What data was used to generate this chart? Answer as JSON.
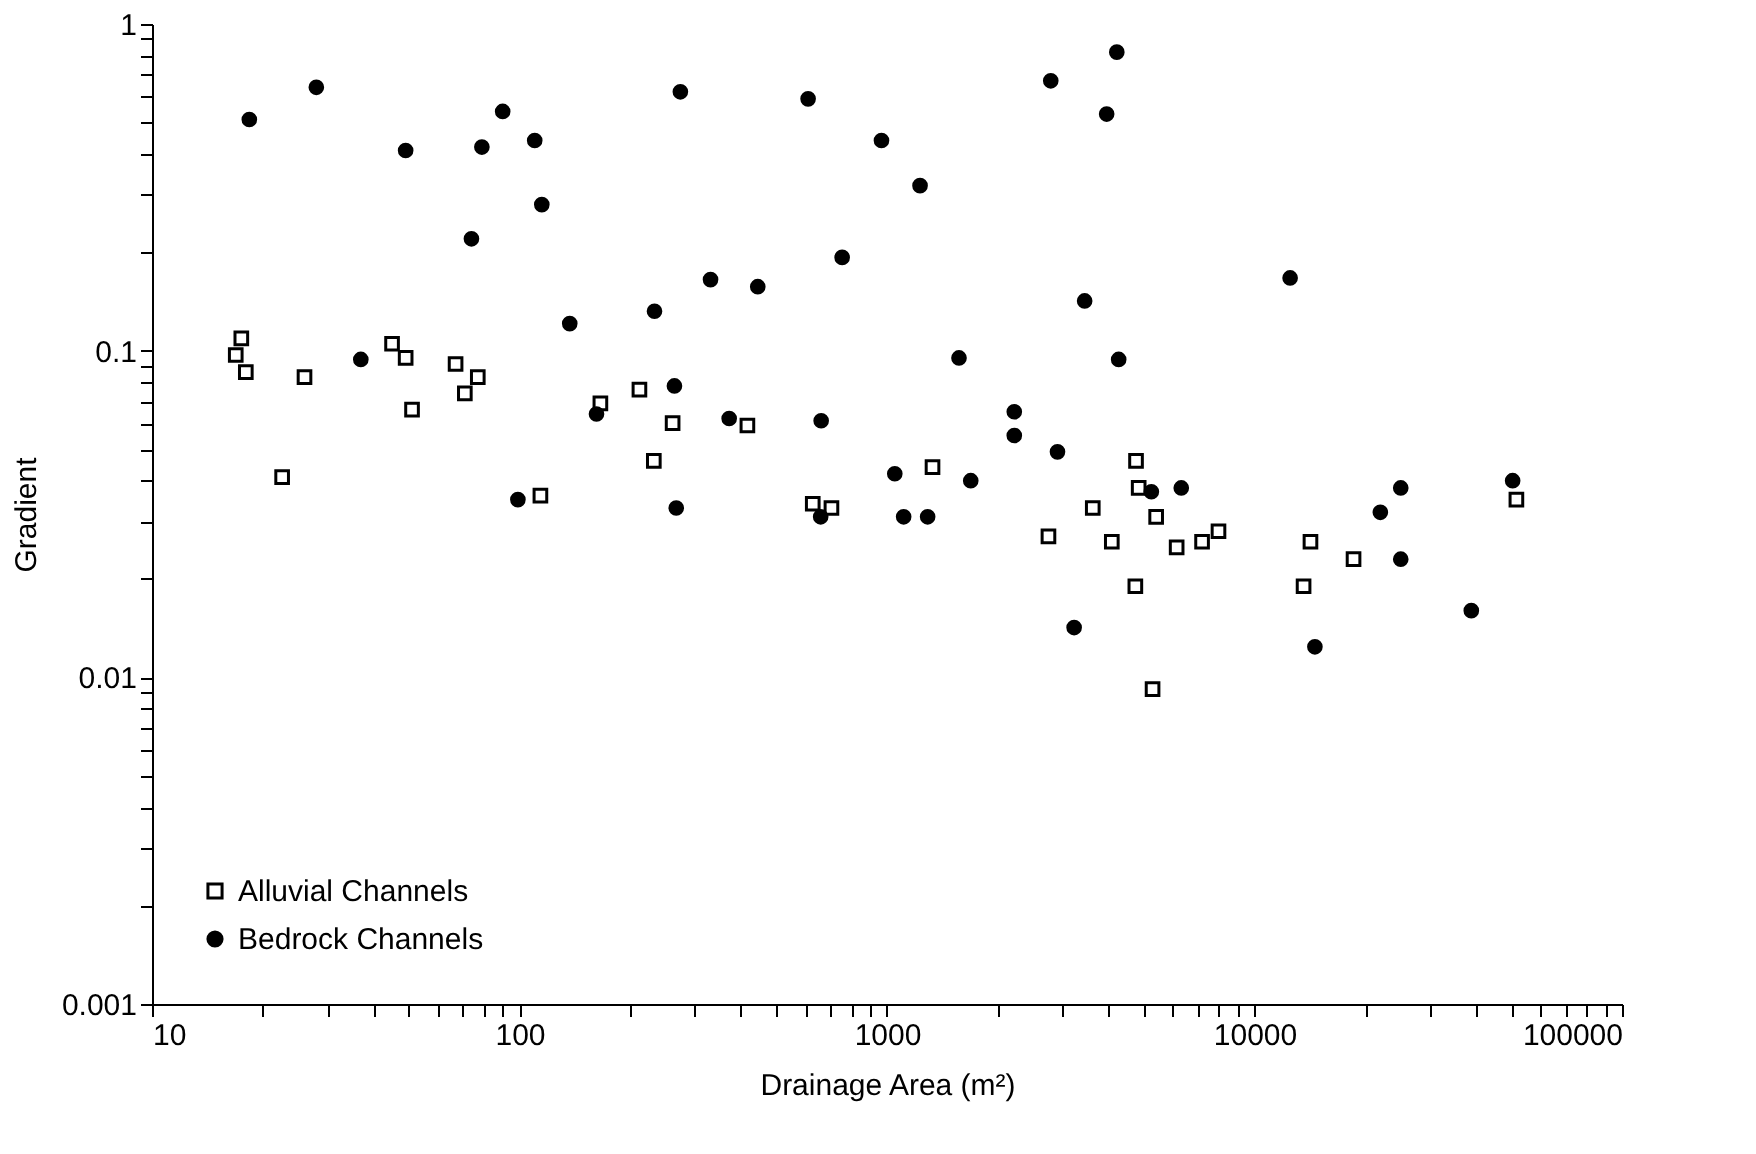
{
  "chart_data": {
    "type": "scatter",
    "xlabel": "Drainage Area (m²)",
    "ylabel": "Gradient",
    "log": "xy",
    "grid": false,
    "legend": "bottom left",
    "xlim": [
      10,
      100000
    ],
    "ylim": [
      0.001,
      1
    ],
    "xticks": [
      10,
      {
        "value": 20,
        "label": null
      },
      {
        "value": 30,
        "label": null
      },
      {
        "value": 40,
        "label": null
      },
      {
        "value": 50,
        "label": null
      },
      {
        "value": 60,
        "label": null
      },
      {
        "value": 70,
        "label": null
      },
      {
        "value": 80,
        "label": null
      },
      {
        "value": 90,
        "label": null
      },
      100,
      {
        "value": 200,
        "label": null
      },
      {
        "value": 300,
        "label": null
      },
      {
        "value": 400,
        "label": null
      },
      {
        "value": 500,
        "label": null
      },
      {
        "value": 600,
        "label": null
      },
      {
        "value": 700,
        "label": null
      },
      {
        "value": 800,
        "label": null
      },
      {
        "value": 900,
        "label": null
      },
      1000,
      {
        "value": 2000,
        "label": null
      },
      {
        "value": 3000,
        "label": null
      },
      {
        "value": 4000,
        "label": null
      },
      {
        "value": 5000,
        "label": null
      },
      {
        "value": 6000,
        "label": null
      },
      {
        "value": 7000,
        "label": null
      },
      {
        "value": 8000,
        "label": null
      },
      {
        "value": 9000,
        "label": null
      },
      10000,
      {
        "value": 20000,
        "label": null
      },
      {
        "value": 30000,
        "label": null
      },
      {
        "value": 40000,
        "label": null
      },
      {
        "value": 50000,
        "label": null
      },
      {
        "value": 60000,
        "label": null
      },
      {
        "value": 70000,
        "label": null
      },
      {
        "value": 80000,
        "label": null
      },
      {
        "value": 90000,
        "label": null
      },
      100000
    ],
    "yticks": [
      0.001,
      {
        "value": 0.002,
        "label": null
      },
      {
        "value": 0.003,
        "label": null
      },
      {
        "value": 0.004,
        "label": null
      },
      {
        "value": 0.005,
        "label": null
      },
      {
        "value": 0.006,
        "label": null
      },
      {
        "value": 0.007,
        "label": null
      },
      {
        "value": 0.008,
        "label": null
      },
      {
        "value": 0.009,
        "label": null
      },
      0.01,
      {
        "value": 0.02,
        "label": null
      },
      {
        "value": 0.03,
        "label": null
      },
      {
        "value": 0.04,
        "label": null
      },
      {
        "value": 0.05,
        "label": null
      },
      {
        "value": 0.06,
        "label": null
      },
      {
        "value": 0.07,
        "label": null
      },
      {
        "value": 0.08,
        "label": null
      },
      {
        "value": 0.09,
        "label": null
      },
      0.1,
      {
        "value": 0.2,
        "label": null
      },
      {
        "value": 0.3,
        "label": null
      },
      {
        "value": 0.4,
        "label": null
      },
      {
        "value": 0.5,
        "label": null
      },
      {
        "value": 0.6,
        "label": null
      },
      {
        "value": 0.7,
        "label": null
      },
      {
        "value": 0.8,
        "label": null
      },
      {
        "value": 0.9,
        "label": null
      },
      1
    ],
    "series": [
      {
        "name": "Alluvial Channels",
        "color": "#000000",
        "marker": "square",
        "x": [
          17.5,
          16.9,
          18,
          26,
          22.6,
          45,
          49,
          51,
          67,
          77,
          71,
          114,
          166,
          212,
          261,
          232,
          417,
          628,
          706,
          1330,
          3630,
          2750,
          4090,
          4760,
          4840,
          5400,
          6140,
          7200,
          7980,
          14200,
          18600,
          51600,
          4740,
          13600,
          5280
        ],
        "values": [
          0.109,
          0.097,
          0.086,
          0.083,
          0.041,
          0.105,
          0.095,
          0.066,
          0.091,
          0.083,
          0.074,
          0.036,
          0.069,
          0.076,
          0.06,
          0.046,
          0.059,
          0.034,
          0.033,
          0.044,
          0.033,
          0.027,
          0.026,
          0.046,
          0.038,
          0.031,
          0.025,
          0.026,
          0.028,
          0.026,
          0.023,
          0.035,
          0.019,
          0.019,
          0.0092
        ]
      },
      {
        "name": "Bedrock Channels",
        "color": "#000000",
        "marker": "circle",
        "x": [
          18.4,
          28,
          49,
          90,
          79,
          110,
          115,
          74,
          274,
          610,
          137,
          233,
          331,
          445,
          37,
          264,
          162,
          372,
          662,
          99,
          267,
          660,
          2790,
          4220,
          3960,
          966,
          1230,
          755,
          3450,
          12500,
          1570,
          4270,
          2220,
          2220,
          2910,
          1050,
          1690,
          1110,
          1290,
          5240,
          6320,
          25000,
          22000,
          50400,
          25000,
          3230,
          14600,
          38900
        ],
        "values": [
          0.51,
          0.64,
          0.41,
          0.54,
          0.42,
          0.44,
          0.28,
          0.22,
          0.62,
          0.59,
          0.121,
          0.132,
          0.165,
          0.157,
          0.094,
          0.078,
          0.064,
          0.062,
          0.061,
          0.035,
          0.033,
          0.031,
          0.67,
          0.82,
          0.53,
          0.44,
          0.32,
          0.193,
          0.142,
          0.167,
          0.095,
          0.094,
          0.065,
          0.055,
          0.049,
          0.042,
          0.04,
          0.031,
          0.031,
          0.037,
          0.038,
          0.038,
          0.032,
          0.04,
          0.023,
          0.0142,
          0.0124,
          0.016
        ]
      }
    ]
  }
}
